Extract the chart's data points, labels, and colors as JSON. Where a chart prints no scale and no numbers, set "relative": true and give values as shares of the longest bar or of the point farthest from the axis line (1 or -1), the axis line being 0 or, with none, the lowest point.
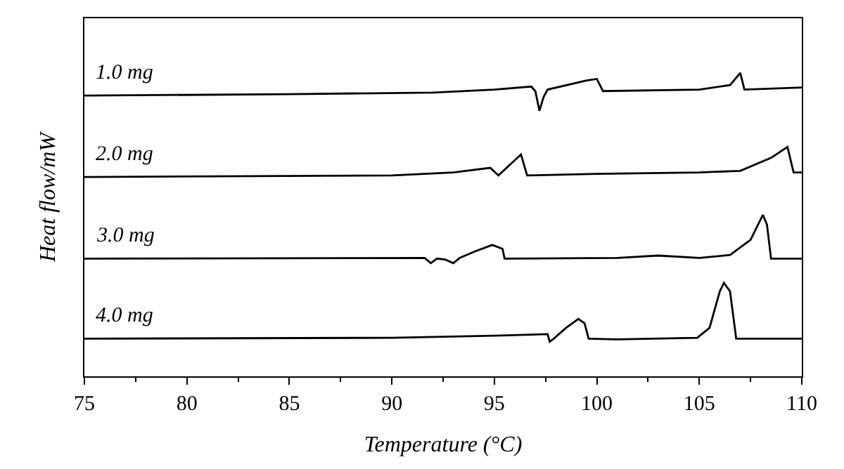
{
  "chart_data": {
    "type": "line",
    "relative": true,
    "xlabel": "Temperature (°C)",
    "ylabel": "Heat flow/mW",
    "xlim": [
      75,
      110
    ],
    "xticks": [
      75,
      80,
      85,
      90,
      95,
      100,
      105,
      110
    ],
    "tick_labels": "x",
    "legend": false,
    "marker": "none",
    "line_style": "solid",
    "series": [
      {
        "name": "1.0 mg",
        "color": "#000000",
        "x": [
          75,
          85,
          92,
          95,
          96.8,
          97.0,
          97.2,
          97.4,
          97.6,
          99.5,
          100.0,
          100.3,
          105,
          106.5,
          107.0,
          107.2,
          110
        ],
        "values": [
          0.925,
          0.93,
          0.935,
          0.945,
          0.955,
          0.94,
          0.875,
          0.92,
          0.945,
          0.975,
          0.98,
          0.94,
          0.945,
          0.96,
          1.0,
          0.945,
          0.952
        ]
      },
      {
        "name": "2.0 mg",
        "color": "#000000",
        "x": [
          75,
          90,
          93,
          94.8,
          95.2,
          96.3,
          96.6,
          100,
          105,
          107,
          108.5,
          109.3,
          109.6,
          110
        ],
        "values": [
          0.657,
          0.662,
          0.672,
          0.687,
          0.662,
          0.731,
          0.662,
          0.667,
          0.672,
          0.677,
          0.72,
          0.756,
          0.672,
          0.672
        ]
      },
      {
        "name": "3.0 mg",
        "color": "#000000",
        "x": [
          75,
          91.6,
          91.9,
          92.2,
          92.6,
          93.0,
          93.3,
          94.0,
          94.9,
          95.4,
          95.5,
          101,
          103,
          105,
          106.5,
          107.5,
          108.1,
          108.3,
          108.5,
          110
        ],
        "values": [
          0.388,
          0.39,
          0.373,
          0.388,
          0.385,
          0.373,
          0.39,
          0.41,
          0.433,
          0.42,
          0.388,
          0.39,
          0.398,
          0.39,
          0.4,
          0.45,
          0.532,
          0.5,
          0.388,
          0.388
        ]
      },
      {
        "name": "4.0 mg",
        "color": "#000000",
        "x": [
          75,
          90,
          95,
          97.6,
          97.7,
          97.9,
          98.5,
          99.1,
          99.4,
          99.6,
          101,
          104.9,
          105.5,
          106.0,
          106.2,
          106.5,
          106.8,
          110
        ],
        "values": [
          0.124,
          0.127,
          0.134,
          0.139,
          0.114,
          0.124,
          0.16,
          0.189,
          0.175,
          0.124,
          0.122,
          0.127,
          0.16,
          0.28,
          0.308,
          0.28,
          0.124,
          0.124
        ]
      }
    ]
  }
}
